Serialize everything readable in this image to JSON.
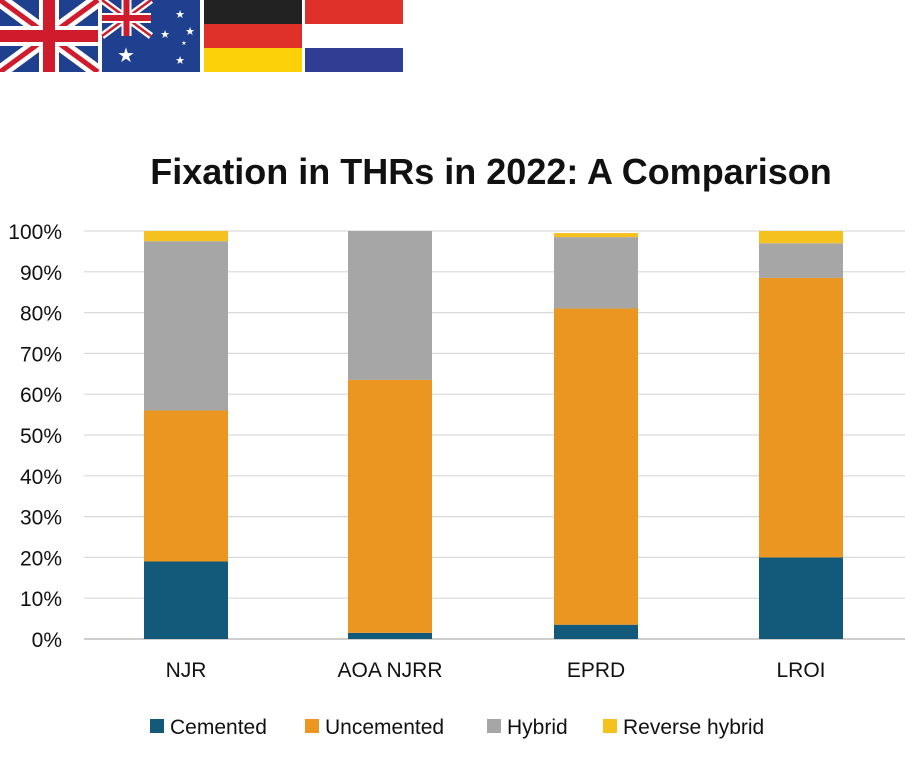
{
  "flags": [
    {
      "name": "uk-flag-icon"
    },
    {
      "name": "australia-flag-icon"
    },
    {
      "name": "germany-flag-icon"
    },
    {
      "name": "netherlands-flag-icon"
    }
  ],
  "chart_data": {
    "type": "bar",
    "stacked": true,
    "title": "Fixation in THRs in 2022: A Comparison",
    "xlabel": "",
    "ylabel": "",
    "categories": [
      "NJR",
      "AOA NJRR",
      "EPRD",
      "LROI"
    ],
    "ylim": [
      0,
      100
    ],
    "yticks": [
      "0%",
      "10%",
      "20%",
      "30%",
      "40%",
      "50%",
      "60%",
      "70%",
      "80%",
      "90%",
      "100%"
    ],
    "grid": true,
    "legend_position": "bottom",
    "series": [
      {
        "name": "Cemented",
        "color": "#135a7a",
        "values": [
          19,
          1.5,
          3.5,
          20
        ]
      },
      {
        "name": "Uncemented",
        "color": "#ec9622",
        "values": [
          37,
          62,
          77.5,
          68.5
        ]
      },
      {
        "name": "Hybrid",
        "color": "#a6a6a6",
        "values": [
          41.5,
          36.5,
          17.5,
          8.5
        ]
      },
      {
        "name": "Reverse hybrid",
        "color": "#f5c11e",
        "values": [
          2.5,
          0,
          1,
          3
        ]
      }
    ]
  }
}
